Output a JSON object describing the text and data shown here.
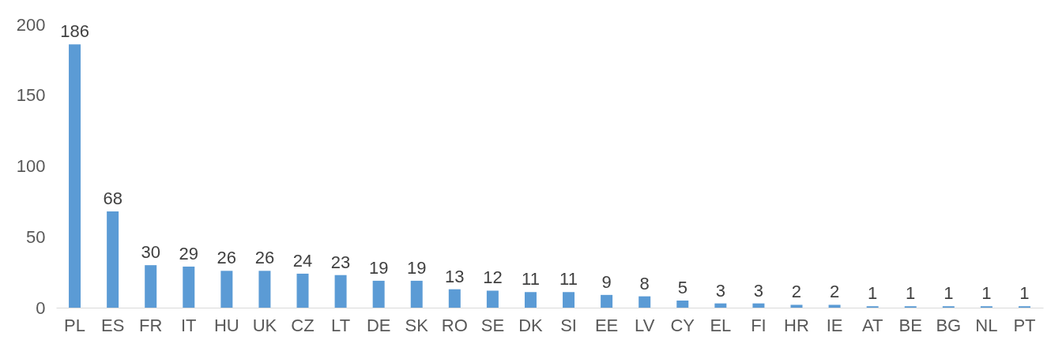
{
  "chart_data": {
    "type": "bar",
    "categories": [
      "PL",
      "ES",
      "FR",
      "IT",
      "HU",
      "UK",
      "CZ",
      "LT",
      "DE",
      "SK",
      "RO",
      "SE",
      "DK",
      "SI",
      "EE",
      "LV",
      "CY",
      "EL",
      "FI",
      "HR",
      "IE",
      "AT",
      "BE",
      "BG",
      "NL",
      "PT"
    ],
    "values": [
      186,
      68,
      30,
      29,
      26,
      26,
      24,
      23,
      19,
      19,
      13,
      12,
      11,
      11,
      9,
      8,
      5,
      3,
      3,
      2,
      2,
      1,
      1,
      1,
      1,
      1
    ],
    "color": "#5b9bd5",
    "ylim": [
      0,
      200
    ],
    "yticks": [
      0,
      50,
      100,
      150,
      200
    ],
    "grid": false,
    "data_labels": true
  }
}
